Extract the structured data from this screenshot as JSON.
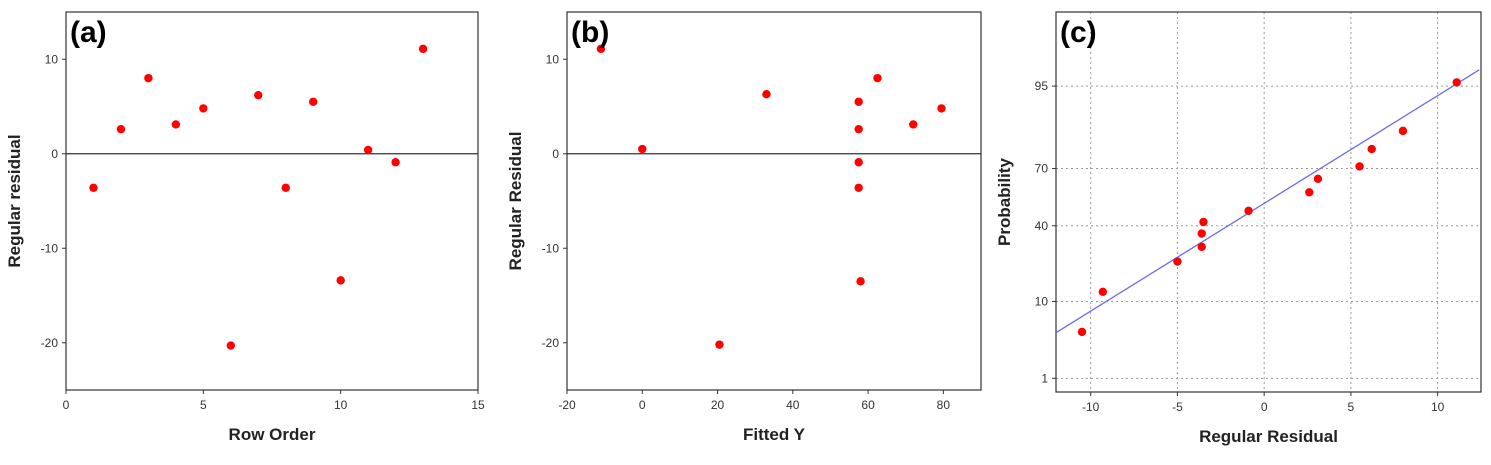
{
  "chart_data": [
    {
      "type": "scatter",
      "panel_label": "(a)",
      "xlabel": "Row Order",
      "ylabel": "Regular residual",
      "xlim": [
        0,
        15
      ],
      "ylim": [
        -25,
        15
      ],
      "xticks": [
        0,
        5,
        10,
        15
      ],
      "yticks": [
        -20,
        -10,
        0,
        10
      ],
      "x_tick_labels": [
        "0",
        "5",
        "10",
        "15"
      ],
      "y_tick_labels": [
        "-20",
        "-10",
        "0",
        "10"
      ],
      "reference_line_y": 0,
      "grid": false,
      "point_color": "#ff0000",
      "points": [
        {
          "x": 1,
          "y": -3.6
        },
        {
          "x": 2,
          "y": 2.6
        },
        {
          "x": 3,
          "y": 8.0
        },
        {
          "x": 4,
          "y": 3.1
        },
        {
          "x": 5,
          "y": 4.8
        },
        {
          "x": 6,
          "y": -20.3
        },
        {
          "x": 7,
          "y": 6.2
        },
        {
          "x": 8,
          "y": -3.6
        },
        {
          "x": 9,
          "y": 5.5
        },
        {
          "x": 10,
          "y": -13.4
        },
        {
          "x": 11,
          "y": 0.4
        },
        {
          "x": 12,
          "y": -0.9
        },
        {
          "x": 13,
          "y": 11.1
        }
      ]
    },
    {
      "type": "scatter",
      "panel_label": "(b)",
      "xlabel": "Fitted Y",
      "ylabel": "Regular Residual",
      "xlim": [
        -20,
        90
      ],
      "ylim": [
        -25,
        15
      ],
      "xticks": [
        -20,
        0,
        20,
        40,
        60,
        80
      ],
      "yticks": [
        -20,
        -10,
        0,
        10
      ],
      "x_tick_labels": [
        "-20",
        "0",
        "20",
        "40",
        "60",
        "80"
      ],
      "y_tick_labels": [
        "-20",
        "-10",
        "0",
        "10"
      ],
      "reference_line_y": 0,
      "grid": false,
      "point_color": "#ff0000",
      "points": [
        {
          "x": -11,
          "y": 11.1
        },
        {
          "x": 0,
          "y": 0.5
        },
        {
          "x": 20.5,
          "y": -20.2
        },
        {
          "x": 33,
          "y": 6.3
        },
        {
          "x": 57.5,
          "y": 5.5
        },
        {
          "x": 57.5,
          "y": 2.6
        },
        {
          "x": 57.5,
          "y": -0.9
        },
        {
          "x": 57.5,
          "y": -3.6
        },
        {
          "x": 58,
          "y": -13.5
        },
        {
          "x": 62.5,
          "y": 8.0
        },
        {
          "x": 72,
          "y": 3.1
        },
        {
          "x": 79.5,
          "y": 4.8
        }
      ]
    },
    {
      "type": "scatter",
      "panel_label": "(c)",
      "xlabel": "Regular Residual",
      "ylabel": "Probability",
      "xlim": [
        -12,
        12.5
      ],
      "ylim_probability": [
        0.6,
        99.6
      ],
      "y_scale": "normal-probability",
      "xticks": [
        -10,
        -5,
        0,
        5,
        10
      ],
      "yticks": [
        1,
        10,
        40,
        70,
        95
      ],
      "x_tick_labels": [
        "-10",
        "-5",
        "0",
        "5",
        "10"
      ],
      "y_tick_labels": [
        "1",
        "10",
        "40",
        "70",
        "95"
      ],
      "grid": true,
      "grid_style": "dotted",
      "point_color": "#ff0000",
      "fit_line_color": "#6a6af0",
      "fit_line": [
        {
          "x": -12,
          "p": 4.4
        },
        {
          "x": 12.4,
          "p": 96.9
        }
      ],
      "points": [
        {
          "x": -10.5,
          "p": 4.5
        },
        {
          "x": -9.3,
          "p": 12.5
        },
        {
          "x": -5,
          "p": 23
        },
        {
          "x": -3.6,
          "p": 29.5
        },
        {
          "x": -3.6,
          "p": 36
        },
        {
          "x": -3.5,
          "p": 42
        },
        {
          "x": -0.9,
          "p": 48
        },
        {
          "x": 2.6,
          "p": 58
        },
        {
          "x": 3.1,
          "p": 65
        },
        {
          "x": 5.5,
          "p": 71
        },
        {
          "x": 6.2,
          "p": 78.5
        },
        {
          "x": 8.0,
          "p": 85
        },
        {
          "x": 11.1,
          "p": 95.5
        }
      ]
    }
  ]
}
